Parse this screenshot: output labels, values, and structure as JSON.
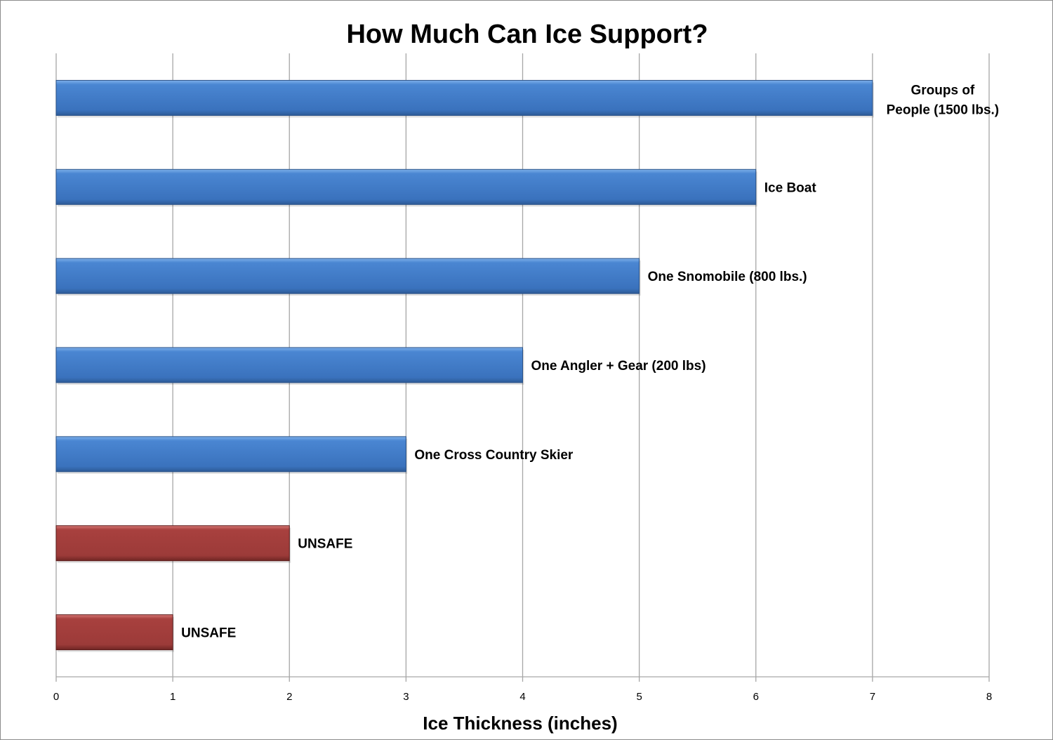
{
  "chart_data": {
    "type": "bar",
    "orientation": "horizontal",
    "title": "How Much Can Ice Support?",
    "xlabel": "Ice Thickness (inches)",
    "ylabel": "",
    "xlim": [
      0,
      8
    ],
    "xticks": [
      "0",
      "1",
      "2",
      "3",
      "4",
      "5",
      "6",
      "7",
      "8"
    ],
    "grid": "vertical",
    "legend": "none",
    "bars": [
      {
        "label": [
          "Groups of",
          "People (1500 lbs.)"
        ],
        "value": 7,
        "color": "#3f7ac6"
      },
      {
        "label": [
          "Ice Boat"
        ],
        "value": 6,
        "color": "#3f7ac6"
      },
      {
        "label": [
          "One Snomobile (800 lbs.)"
        ],
        "value": 5,
        "color": "#3f7ac6"
      },
      {
        "label": [
          "One Angler + Gear (200 lbs)"
        ],
        "value": 4,
        "color": "#3f7ac6"
      },
      {
        "label": [
          "One Cross Country Skier"
        ],
        "value": 3,
        "color": "#3f7ac6"
      },
      {
        "label": [
          "UNSAFE"
        ],
        "value": 2,
        "color": "#a03c3a"
      },
      {
        "label": [
          "UNSAFE"
        ],
        "value": 1,
        "color": "#a03c3a"
      }
    ]
  }
}
